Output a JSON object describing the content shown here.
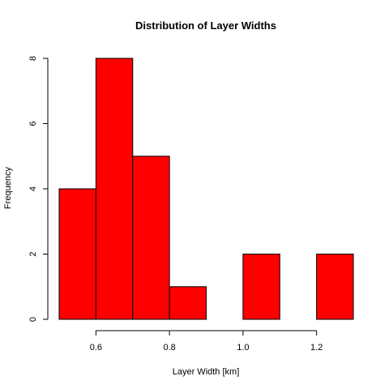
{
  "chart_data": {
    "type": "bar",
    "title": "Distribution of Layer Widths",
    "xlabel": "Layer Width [km]",
    "ylabel": "Frequency",
    "bins": [
      {
        "x0": 0.5,
        "x1": 0.6,
        "count": 4
      },
      {
        "x0": 0.6,
        "x1": 0.7,
        "count": 8
      },
      {
        "x0": 0.7,
        "x1": 0.8,
        "count": 5
      },
      {
        "x0": 0.8,
        "x1": 0.9,
        "count": 1
      },
      {
        "x0": 0.9,
        "x1": 1.0,
        "count": 0
      },
      {
        "x0": 1.0,
        "x1": 1.1,
        "count": 2
      },
      {
        "x0": 1.1,
        "x1": 1.2,
        "count": 0
      },
      {
        "x0": 1.2,
        "x1": 1.3,
        "count": 2
      }
    ],
    "xlim": [
      0.5,
      1.3
    ],
    "ylim": [
      0,
      8
    ],
    "xticks": [
      0.6,
      0.8,
      1.0,
      1.2
    ],
    "xtick_labels": [
      "0.6",
      "0.8",
      "1.0",
      "1.2"
    ],
    "yticks": [
      0,
      2,
      4,
      6,
      8
    ],
    "ytick_labels": [
      "0",
      "2",
      "4",
      "6",
      "8"
    ],
    "bar_color": "#ff0000",
    "bar_edge_color": "#000000",
    "grid": false,
    "legend": "none"
  }
}
